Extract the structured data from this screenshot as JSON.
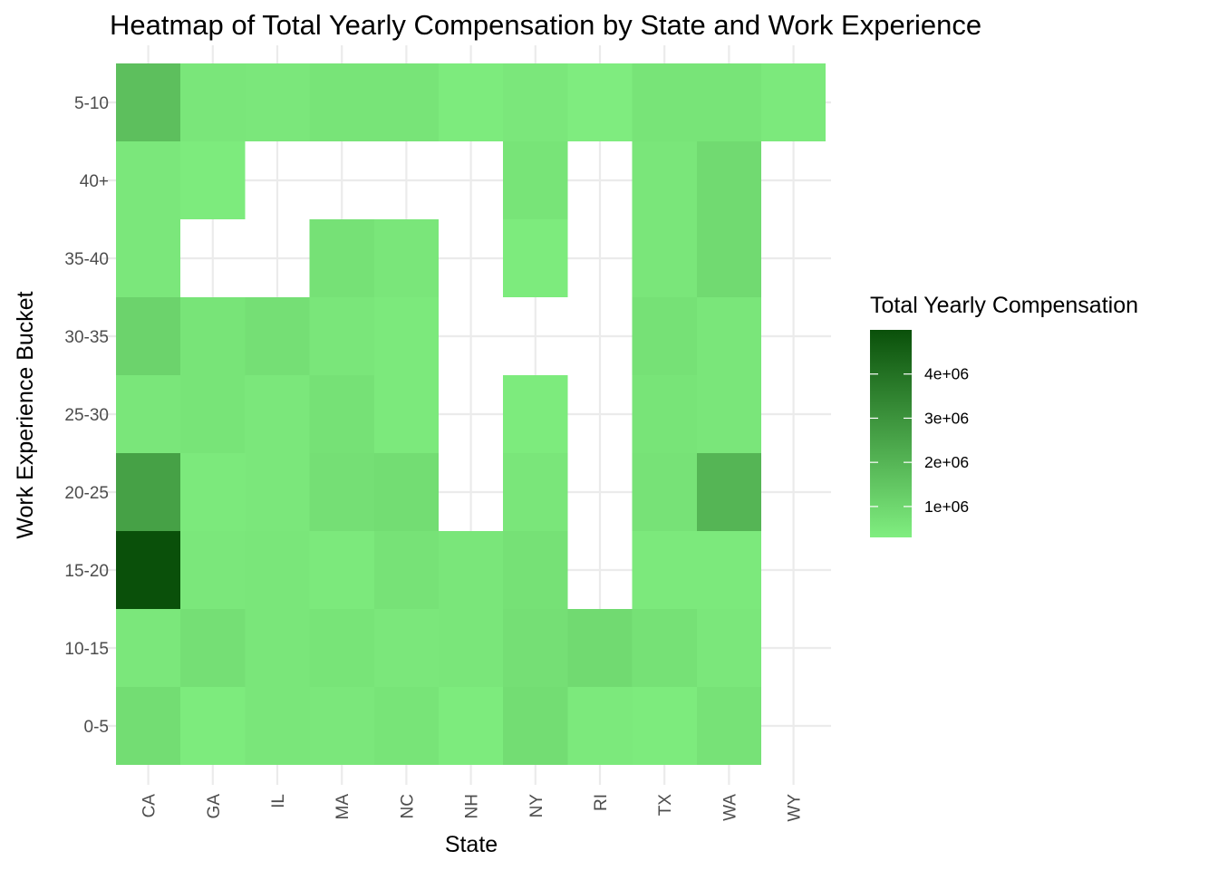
{
  "chart_data": {
    "type": "heatmap",
    "title": "Heatmap of Total Yearly Compensation by State and Work Experience",
    "xlabel": "State",
    "ylabel": "Work Experience Bucket",
    "x_categories": [
      "CA",
      "GA",
      "IL",
      "MA",
      "NC",
      "NH",
      "NY",
      "RI",
      "TX",
      "WA",
      "WY"
    ],
    "y_categories": [
      "0-5",
      "10-15",
      "15-20",
      "20-25",
      "25-30",
      "30-35",
      "35-40",
      "40+",
      "5-10"
    ],
    "color_scale": {
      "low": "#80ee80",
      "high": "#0a500a",
      "min": 300000,
      "max": 5000000
    },
    "legend": {
      "title": "Total Yearly Compensation",
      "breaks": [
        1000000,
        2000000,
        3000000,
        4000000
      ],
      "labels": [
        "1e+06",
        "2e+06",
        "3e+06",
        "4e+06"
      ],
      "placement": "right"
    },
    "grid": true,
    "cells": [
      {
        "x": "CA",
        "y": "0-5",
        "value": 800000
      },
      {
        "x": "CA",
        "y": "10-15",
        "value": 500000
      },
      {
        "x": "CA",
        "y": "15-20",
        "value": 5000000
      },
      {
        "x": "CA",
        "y": "20-25",
        "value": 2600000
      },
      {
        "x": "CA",
        "y": "25-30",
        "value": 550000
      },
      {
        "x": "CA",
        "y": "30-35",
        "value": 1100000
      },
      {
        "x": "CA",
        "y": "35-40",
        "value": 500000
      },
      {
        "x": "CA",
        "y": "40+",
        "value": 500000
      },
      {
        "x": "CA",
        "y": "5-10",
        "value": 1700000
      },
      {
        "x": "GA",
        "y": "0-5",
        "value": 400000
      },
      {
        "x": "GA",
        "y": "10-15",
        "value": 750000
      },
      {
        "x": "GA",
        "y": "15-20",
        "value": 500000
      },
      {
        "x": "GA",
        "y": "20-25",
        "value": 450000
      },
      {
        "x": "GA",
        "y": "25-30",
        "value": 600000
      },
      {
        "x": "GA",
        "y": "30-35",
        "value": 600000
      },
      {
        "x": "GA",
        "y": "40+",
        "value": 400000
      },
      {
        "x": "GA",
        "y": "5-10",
        "value": 550000
      },
      {
        "x": "IL",
        "y": "0-5",
        "value": 550000
      },
      {
        "x": "IL",
        "y": "10-15",
        "value": 550000
      },
      {
        "x": "IL",
        "y": "15-20",
        "value": 550000
      },
      {
        "x": "IL",
        "y": "20-25",
        "value": 500000
      },
      {
        "x": "IL",
        "y": "25-30",
        "value": 500000
      },
      {
        "x": "IL",
        "y": "30-35",
        "value": 750000
      },
      {
        "x": "IL",
        "y": "5-10",
        "value": 500000
      },
      {
        "x": "MA",
        "y": "0-5",
        "value": 500000
      },
      {
        "x": "MA",
        "y": "10-15",
        "value": 600000
      },
      {
        "x": "MA",
        "y": "15-20",
        "value": 450000
      },
      {
        "x": "MA",
        "y": "20-25",
        "value": 750000
      },
      {
        "x": "MA",
        "y": "25-30",
        "value": 700000
      },
      {
        "x": "MA",
        "y": "30-35",
        "value": 550000
      },
      {
        "x": "MA",
        "y": "35-40",
        "value": 700000
      },
      {
        "x": "MA",
        "y": "5-10",
        "value": 600000
      },
      {
        "x": "NC",
        "y": "0-5",
        "value": 600000
      },
      {
        "x": "NC",
        "y": "10-15",
        "value": 500000
      },
      {
        "x": "NC",
        "y": "15-20",
        "value": 650000
      },
      {
        "x": "NC",
        "y": "20-25",
        "value": 800000
      },
      {
        "x": "NC",
        "y": "25-30",
        "value": 450000
      },
      {
        "x": "NC",
        "y": "30-35",
        "value": 450000
      },
      {
        "x": "NC",
        "y": "35-40",
        "value": 550000
      },
      {
        "x": "NC",
        "y": "5-10",
        "value": 600000
      },
      {
        "x": "NH",
        "y": "0-5",
        "value": 400000
      },
      {
        "x": "NH",
        "y": "10-15",
        "value": 550000
      },
      {
        "x": "NH",
        "y": "15-20",
        "value": 550000
      },
      {
        "x": "NH",
        "y": "5-10",
        "value": 400000
      },
      {
        "x": "NY",
        "y": "0-5",
        "value": 800000
      },
      {
        "x": "NY",
        "y": "10-15",
        "value": 750000
      },
      {
        "x": "NY",
        "y": "15-20",
        "value": 700000
      },
      {
        "x": "NY",
        "y": "20-25",
        "value": 550000
      },
      {
        "x": "NY",
        "y": "25-30",
        "value": 400000
      },
      {
        "x": "NY",
        "y": "35-40",
        "value": 400000
      },
      {
        "x": "NY",
        "y": "40+",
        "value": 600000
      },
      {
        "x": "NY",
        "y": "5-10",
        "value": 500000
      },
      {
        "x": "RI",
        "y": "0-5",
        "value": 450000
      },
      {
        "x": "RI",
        "y": "10-15",
        "value": 900000
      },
      {
        "x": "RI",
        "y": "5-10",
        "value": 350000
      },
      {
        "x": "TX",
        "y": "0-5",
        "value": 400000
      },
      {
        "x": "TX",
        "y": "10-15",
        "value": 700000
      },
      {
        "x": "TX",
        "y": "15-20",
        "value": 450000
      },
      {
        "x": "TX",
        "y": "20-25",
        "value": 650000
      },
      {
        "x": "TX",
        "y": "25-30",
        "value": 600000
      },
      {
        "x": "TX",
        "y": "30-35",
        "value": 700000
      },
      {
        "x": "TX",
        "y": "35-40",
        "value": 550000
      },
      {
        "x": "TX",
        "y": "40+",
        "value": 550000
      },
      {
        "x": "TX",
        "y": "5-10",
        "value": 600000
      },
      {
        "x": "WA",
        "y": "0-5",
        "value": 650000
      },
      {
        "x": "WA",
        "y": "10-15",
        "value": 500000
      },
      {
        "x": "WA",
        "y": "15-20",
        "value": 450000
      },
      {
        "x": "WA",
        "y": "20-25",
        "value": 2000000
      },
      {
        "x": "WA",
        "y": "25-30",
        "value": 550000
      },
      {
        "x": "WA",
        "y": "30-35",
        "value": 550000
      },
      {
        "x": "WA",
        "y": "35-40",
        "value": 900000
      },
      {
        "x": "WA",
        "y": "40+",
        "value": 900000
      },
      {
        "x": "WA",
        "y": "5-10",
        "value": 600000
      },
      {
        "x": "WY",
        "y": "5-10",
        "value": 450000
      }
    ]
  }
}
